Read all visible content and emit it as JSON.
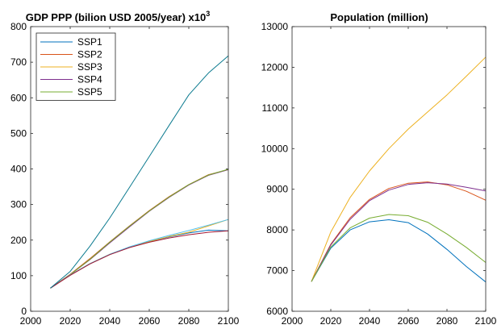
{
  "chart_data": [
    {
      "type": "line",
      "title": "GDP PPP (bilion USD 2005/year) x10",
      "title_superscript": "3",
      "xlabel": "",
      "ylabel": "",
      "xlim": [
        2000,
        2100
      ],
      "ylim": [
        0,
        800
      ],
      "xticks": [
        2000,
        2020,
        2040,
        2060,
        2080,
        2100
      ],
      "yticks": [
        0,
        100,
        200,
        300,
        400,
        500,
        600,
        700,
        800
      ],
      "grid": false,
      "legend": {
        "placement": "top-left",
        "entries": [
          "SSP1",
          "SSP2",
          "SSP3",
          "SSP4",
          "SSP5"
        ]
      },
      "series": [
        {
          "name": "SSP1",
          "color": "#0072BD",
          "x": [
            2010,
            2020,
            2030,
            2040,
            2050,
            2060,
            2070,
            2080,
            2090,
            2100
          ],
          "y": [
            65,
            102,
            134,
            160,
            180,
            196,
            209,
            220,
            228,
            226
          ]
        },
        {
          "name": "SSP2",
          "color": "#D95319",
          "x": [
            2010,
            2020,
            2030,
            2040,
            2050,
            2060,
            2070,
            2080,
            2090,
            2100
          ],
          "y": [
            65,
            104,
            148,
            195,
            240,
            283,
            322,
            356,
            384,
            398
          ]
        },
        {
          "name": "SSP3",
          "color": "#EDB120",
          "x": [
            2010,
            2020,
            2030,
            2040,
            2050,
            2060,
            2070,
            2080,
            2090,
            2100
          ],
          "y": [
            65,
            102,
            134,
            160,
            180,
            196,
            210,
            222,
            240,
            258
          ]
        },
        {
          "name": "SSP4",
          "color": "#7E2F8E",
          "x": [
            2010,
            2020,
            2030,
            2040,
            2050,
            2060,
            2070,
            2080,
            2090,
            2100
          ],
          "y": [
            65,
            103,
            145,
            192,
            237,
            281,
            320,
            355,
            382,
            398
          ]
        },
        {
          "name": "SSP5",
          "color": "#77AC30",
          "x": [
            2010,
            2020,
            2030,
            2040,
            2050,
            2060,
            2070,
            2080,
            2090,
            2100
          ],
          "y": [
            65,
            103,
            146,
            194,
            239,
            282,
            321,
            356,
            383,
            399
          ]
        },
        {
          "name": "",
          "color": "#4DBEEE",
          "x": [
            2010,
            2020,
            2030,
            2040,
            2050,
            2060,
            2070,
            2080,
            2090,
            2100
          ],
          "y": [
            65,
            102,
            134,
            160,
            181,
            198,
            213,
            227,
            242,
            258
          ]
        },
        {
          "name": "",
          "color": "#A2142F",
          "x": [
            2010,
            2020,
            2030,
            2040,
            2050,
            2060,
            2070,
            2080,
            2090,
            2100
          ],
          "y": [
            65,
            101,
            133,
            159,
            179,
            194,
            206,
            215,
            222,
            226
          ]
        },
        {
          "name": "",
          "color": "#0B7A8F",
          "x": [
            2010,
            2020,
            2030,
            2040,
            2050,
            2060,
            2070,
            2080,
            2090,
            2100
          ],
          "y": [
            65,
            112,
            183,
            262,
            348,
            435,
            522,
            608,
            670,
            718
          ]
        }
      ]
    },
    {
      "type": "line",
      "title": "Population (million)",
      "xlabel": "",
      "ylabel": "",
      "xlim": [
        2000,
        2100
      ],
      "ylim": [
        6000,
        13000
      ],
      "xticks": [
        2000,
        2020,
        2040,
        2060,
        2080,
        2100
      ],
      "yticks": [
        6000,
        7000,
        8000,
        9000,
        10000,
        11000,
        12000,
        13000
      ],
      "grid": false,
      "series": [
        {
          "name": "SSP1",
          "color": "#0072BD",
          "x": [
            2010,
            2020,
            2030,
            2040,
            2050,
            2060,
            2070,
            2080,
            2090,
            2100
          ],
          "y": [
            6730,
            7550,
            8000,
            8200,
            8250,
            8180,
            7900,
            7520,
            7100,
            6720
          ]
        },
        {
          "name": "SSP2",
          "color": "#D95319",
          "x": [
            2010,
            2020,
            2030,
            2040,
            2050,
            2060,
            2070,
            2080,
            2090,
            2100
          ],
          "y": [
            6730,
            7650,
            8300,
            8750,
            9020,
            9150,
            9180,
            9110,
            8950,
            8730
          ]
        },
        {
          "name": "SSP3",
          "color": "#EDB120",
          "x": [
            2010,
            2020,
            2030,
            2040,
            2050,
            2060,
            2070,
            2080,
            2090,
            2100
          ],
          "y": [
            6730,
            7950,
            8800,
            9450,
            10000,
            10480,
            10900,
            11320,
            11780,
            12250
          ]
        },
        {
          "name": "SSP4",
          "color": "#7E2F8E",
          "x": [
            2010,
            2020,
            2030,
            2040,
            2050,
            2060,
            2070,
            2080,
            2090,
            2100
          ],
          "y": [
            6730,
            7630,
            8260,
            8720,
            8980,
            9120,
            9160,
            9130,
            9050,
            8960
          ]
        },
        {
          "name": "SSP5",
          "color": "#77AC30",
          "x": [
            2010,
            2020,
            2030,
            2040,
            2050,
            2060,
            2070,
            2080,
            2090,
            2100
          ],
          "y": [
            6730,
            7580,
            8050,
            8290,
            8380,
            8350,
            8190,
            7900,
            7570,
            7200
          ]
        }
      ]
    }
  ]
}
